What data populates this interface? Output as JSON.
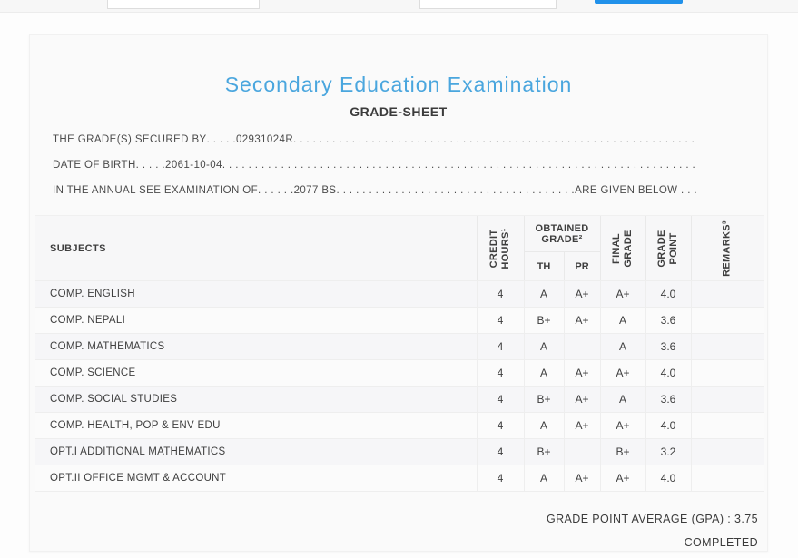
{
  "colors": {
    "title_blue": "#4aa6de",
    "button_blue": "#2191ea",
    "card_bg": "#fafafa"
  },
  "topbar": {
    "note_icons": []
  },
  "page": {
    "title": "Secondary Education Examination",
    "subtitle": "GRADE-SHEET"
  },
  "statements": {
    "fill": ". . . . . . . . . . . . . . . . . . . . . . . . . . . . . . . . . . . . . . . . . . . . . . . . . . . . . . . . . . . . . . . . . . . . . . . . . . . . . . . . . . . . . . . .",
    "line1": {
      "label": "THE GRADE(S) SECURED BY",
      "dots": " . . . . . ",
      "value": "02931024R",
      "suffix": ""
    },
    "line2": {
      "label": "DATE OF BIRTH",
      "dots": " . . . . . ",
      "value": "2061-10-04",
      "suffix": ""
    },
    "line3": {
      "label": "IN THE ANNUAL SEE EXAMINATION OF",
      "dots": " . . . . . . ",
      "value": "2077 BS",
      "suffix": " ARE GIVEN BELOW . . ."
    }
  },
  "table": {
    "headers": {
      "subjects": "SUBJECTS",
      "credit_hours": {
        "line1": "CREDIT",
        "line2": "HOURS¹"
      },
      "obtained_grade": {
        "line1": "OBTAINED",
        "line2": "GRADE²"
      },
      "th": "TH",
      "pr": "PR",
      "final_grade": {
        "line1": "FINAL",
        "line2": "GRADE"
      },
      "grade_point": {
        "line1": "GRADE",
        "line2": "POINT"
      },
      "remarks": "REMARKS³"
    },
    "rows": [
      {
        "subject": "COMP. ENGLISH",
        "credit": "4",
        "th": "A",
        "pr": "A+",
        "final": "A+",
        "point": "4.0",
        "remarks": ""
      },
      {
        "subject": "COMP. NEPALI",
        "credit": "4",
        "th": "B+",
        "pr": "A+",
        "final": "A",
        "point": "3.6",
        "remarks": ""
      },
      {
        "subject": "COMP. MATHEMATICS",
        "credit": "4",
        "th": "A",
        "pr": "",
        "final": "A",
        "point": "3.6",
        "remarks": ""
      },
      {
        "subject": "COMP. SCIENCE",
        "credit": "4",
        "th": "A",
        "pr": "A+",
        "final": "A+",
        "point": "4.0",
        "remarks": ""
      },
      {
        "subject": "COMP. SOCIAL STUDIES",
        "credit": "4",
        "th": "B+",
        "pr": "A+",
        "final": "A",
        "point": "3.6",
        "remarks": ""
      },
      {
        "subject": "COMP. HEALTH, POP & ENV EDU",
        "credit": "4",
        "th": "A",
        "pr": "A+",
        "final": "A+",
        "point": "4.0",
        "remarks": ""
      },
      {
        "subject": "OPT.I ADDITIONAL MATHEMATICS",
        "credit": "4",
        "th": "B+",
        "pr": "",
        "final": "B+",
        "point": "3.2",
        "remarks": ""
      },
      {
        "subject": "OPT.II OFFICE MGMT & ACCOUNT",
        "credit": "4",
        "th": "A",
        "pr": "A+",
        "final": "A+",
        "point": "4.0",
        "remarks": ""
      }
    ]
  },
  "footer": {
    "gpa": "GRADE POINT AVERAGE (GPA) : 3.75",
    "status": "COMPLETED"
  }
}
